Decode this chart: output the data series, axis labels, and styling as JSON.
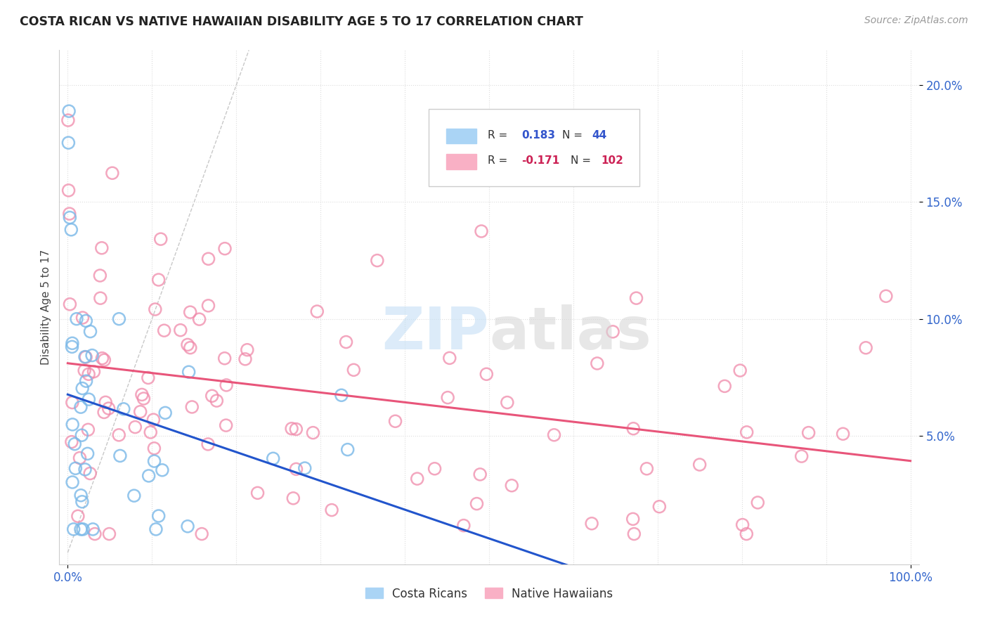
{
  "title": "COSTA RICAN VS NATIVE HAWAIIAN DISABILITY AGE 5 TO 17 CORRELATION CHART",
  "source": "Source: ZipAtlas.com",
  "ylabel": "Disability Age 5 to 17",
  "cr_color": "#7ab8e8",
  "nh_color": "#f08aaa",
  "cr_line_color": "#2255cc",
  "nh_line_color": "#e8557a",
  "diagonal_color": "#bbbbbb",
  "xlim": [
    0.0,
    1.0
  ],
  "ylim": [
    0.0,
    0.215
  ],
  "yticks": [
    0.05,
    0.1,
    0.15,
    0.2
  ],
  "ytick_labels": [
    "5.0%",
    "10.0%",
    "15.0%",
    "20.0%"
  ],
  "cr_R": 0.183,
  "cr_N": 44,
  "nh_R": -0.171,
  "nh_N": 102,
  "watermark_zip_color": "#c5dff5",
  "watermark_atlas_color": "#d5d5d5"
}
